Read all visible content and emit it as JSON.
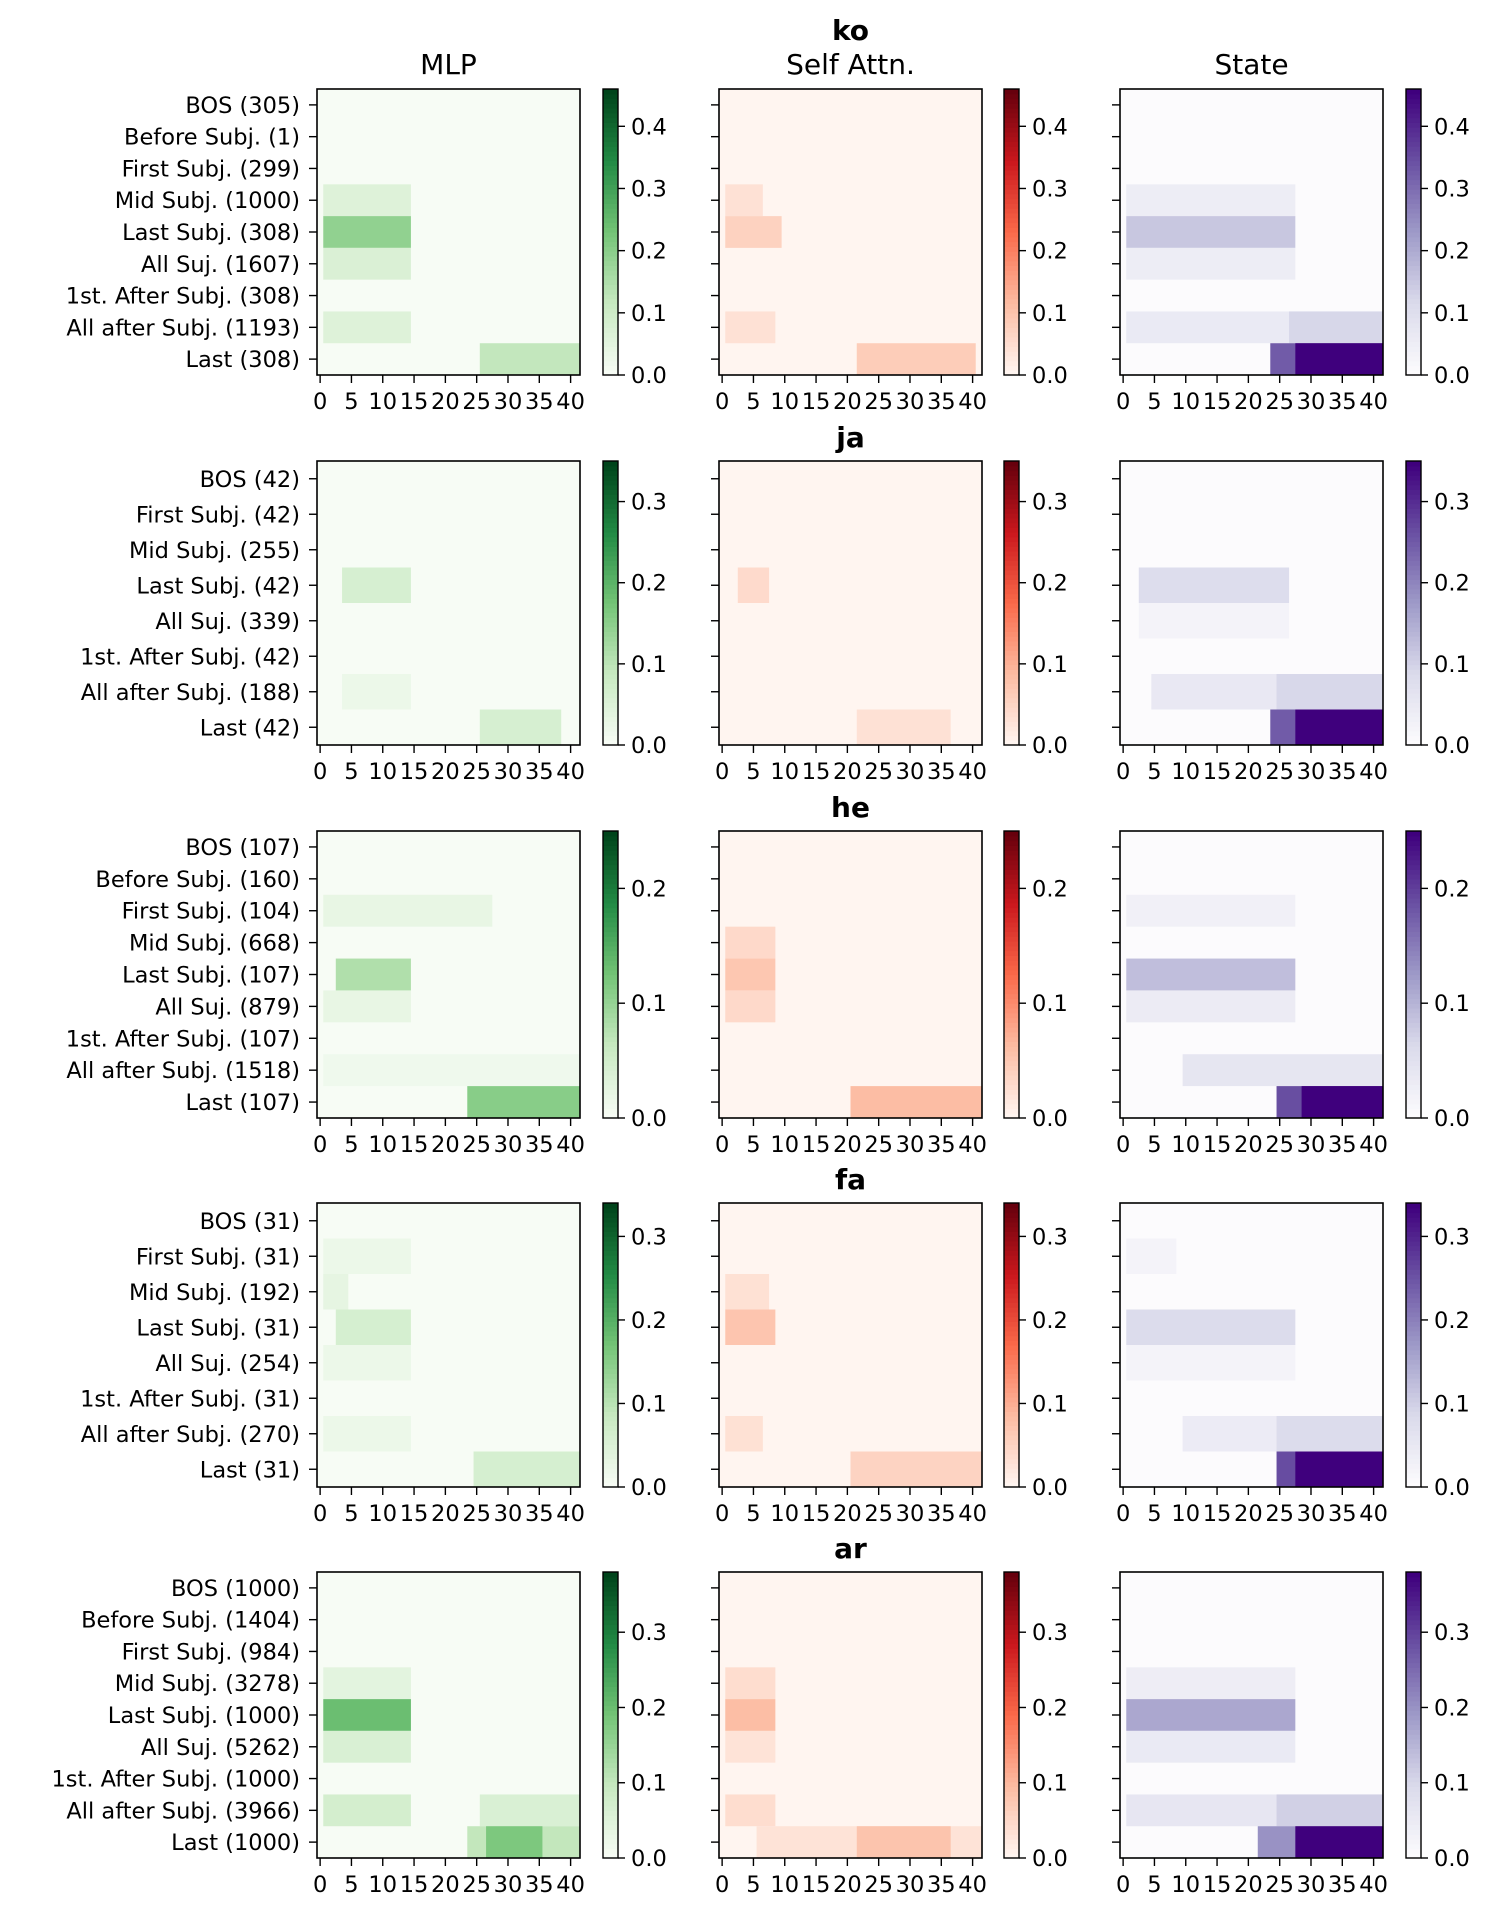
{
  "figure": {
    "column_titles": [
      "MLP",
      "Self Attn.",
      "State"
    ]
  },
  "chart_data": [
    {
      "type": "heatmap",
      "title": "ko",
      "rows": [
        "BOS (305)",
        "Before Subj. (1)",
        "First Subj. (299)",
        "Mid Subj. (1000)",
        "Last Subj. (308)",
        "All Suj. (1607)",
        "1st. After Subj. (308)",
        "All after Subj. (1193)",
        "Last (308)"
      ],
      "x_ticks": [
        "0",
        "5",
        "10",
        "15",
        "20",
        "25",
        "30",
        "35",
        "40"
      ],
      "xlim": [
        0,
        42
      ],
      "vmax": 0.46,
      "colorbar_ticks": [
        "0.0",
        "0.1",
        "0.2",
        "0.3",
        "0.4"
      ],
      "panels": [
        {
          "name": "MLP",
          "cmap": "Greens",
          "blobs": [
            {
              "row": "Mid Subj. (1000)",
              "from": 1,
              "to": 14,
              "value": 0.06
            },
            {
              "row": "Last Subj. (308)",
              "from": 1,
              "to": 14,
              "value": 0.19
            },
            {
              "row": "All Suj. (1607)",
              "from": 1,
              "to": 14,
              "value": 0.07
            },
            {
              "row": "All after Subj. (1193)",
              "from": 1,
              "to": 14,
              "value": 0.06
            },
            {
              "row": "Last (308)",
              "from": 26,
              "to": 41,
              "value": 0.12
            }
          ]
        },
        {
          "name": "Self Attn.",
          "cmap": "Reds",
          "blobs": [
            {
              "row": "Mid Subj. (1000)",
              "from": 1,
              "to": 6,
              "value": 0.04
            },
            {
              "row": "Last Subj. (308)",
              "from": 1,
              "to": 9,
              "value": 0.07
            },
            {
              "row": "All after Subj. (1193)",
              "from": 1,
              "to": 8,
              "value": 0.04
            },
            {
              "row": "Last (308)",
              "from": 22,
              "to": 40,
              "value": 0.08
            }
          ]
        },
        {
          "name": "State",
          "cmap": "Purples",
          "blobs": [
            {
              "row": "Mid Subj. (1000)",
              "from": 1,
              "to": 27,
              "value": 0.05
            },
            {
              "row": "Last Subj. (308)",
              "from": 1,
              "to": 27,
              "value": 0.15
            },
            {
              "row": "All Suj. (1607)",
              "from": 1,
              "to": 27,
              "value": 0.05
            },
            {
              "row": "All after Subj. (1193)",
              "from": 1,
              "to": 41,
              "value": 0.06
            },
            {
              "row": "All after Subj. (1193)",
              "from": 27,
              "to": 41,
              "value": 0.12
            },
            {
              "row": "Last (308)",
              "from": 24,
              "to": 41,
              "value": 0.33
            },
            {
              "row": "Last (308)",
              "from": 28,
              "to": 41,
              "value": 0.46
            }
          ]
        }
      ]
    },
    {
      "type": "heatmap",
      "title": "ja",
      "rows": [
        "BOS (42)",
        "First Subj. (42)",
        "Mid Subj. (255)",
        "Last Subj. (42)",
        "All Suj. (339)",
        "1st. After Subj. (42)",
        "All after Subj. (188)",
        "Last (42)"
      ],
      "x_ticks": [
        "0",
        "5",
        "10",
        "15",
        "20",
        "25",
        "30",
        "35",
        "40"
      ],
      "xlim": [
        0,
        42
      ],
      "vmax": 0.35,
      "colorbar_ticks": [
        "0.0",
        "0.1",
        "0.2",
        "0.3"
      ],
      "panels": [
        {
          "name": "MLP",
          "cmap": "Greens",
          "blobs": [
            {
              "row": "Last Subj. (42)",
              "from": 4,
              "to": 14,
              "value": 0.06
            },
            {
              "row": "All after Subj. (188)",
              "from": 4,
              "to": 14,
              "value": 0.02
            },
            {
              "row": "Last (42)",
              "from": 26,
              "to": 38,
              "value": 0.06
            }
          ]
        },
        {
          "name": "Self Attn.",
          "cmap": "Reds",
          "blobs": [
            {
              "row": "Last Subj. (42)",
              "from": 3,
              "to": 7,
              "value": 0.04
            },
            {
              "row": "Last (42)",
              "from": 22,
              "to": 36,
              "value": 0.03
            }
          ]
        },
        {
          "name": "State",
          "cmap": "Purples",
          "blobs": [
            {
              "row": "Last Subj. (42)",
              "from": 3,
              "to": 26,
              "value": 0.08
            },
            {
              "row": "All Suj. (339)",
              "from": 3,
              "to": 26,
              "value": 0.02
            },
            {
              "row": "All after Subj. (188)",
              "from": 5,
              "to": 41,
              "value": 0.05
            },
            {
              "row": "All after Subj. (188)",
              "from": 25,
              "to": 41,
              "value": 0.09
            },
            {
              "row": "Last (42)",
              "from": 24,
              "to": 41,
              "value": 0.25
            },
            {
              "row": "Last (42)",
              "from": 28,
              "to": 41,
              "value": 0.35
            }
          ]
        }
      ]
    },
    {
      "type": "heatmap",
      "title": "he",
      "rows": [
        "BOS (107)",
        "Before Subj. (160)",
        "First Subj. (104)",
        "Mid Subj. (668)",
        "Last Subj. (107)",
        "All Suj. (879)",
        "1st. After Subj. (107)",
        "All after Subj. (1518)",
        "Last (107)"
      ],
      "x_ticks": [
        "0",
        "5",
        "10",
        "15",
        "20",
        "25",
        "30",
        "35",
        "40"
      ],
      "xlim": [
        0,
        42
      ],
      "vmax": 0.25,
      "colorbar_ticks": [
        "0.0",
        "0.1",
        "0.2"
      ],
      "panels": [
        {
          "name": "MLP",
          "cmap": "Greens",
          "blobs": [
            {
              "row": "First Subj. (104)",
              "from": 1,
              "to": 27,
              "value": 0.02
            },
            {
              "row": "Last Subj. (107)",
              "from": 3,
              "to": 14,
              "value": 0.08
            },
            {
              "row": "All Suj. (879)",
              "from": 1,
              "to": 14,
              "value": 0.02
            },
            {
              "row": "All after Subj. (1518)",
              "from": 1,
              "to": 41,
              "value": 0.01
            },
            {
              "row": "Last (107)",
              "from": 24,
              "to": 41,
              "value": 0.11
            }
          ]
        },
        {
          "name": "Self Attn.",
          "cmap": "Reds",
          "blobs": [
            {
              "row": "Mid Subj. (668)",
              "from": 1,
              "to": 8,
              "value": 0.03
            },
            {
              "row": "Last Subj. (107)",
              "from": 1,
              "to": 8,
              "value": 0.05
            },
            {
              "row": "All Suj. (879)",
              "from": 1,
              "to": 8,
              "value": 0.03
            },
            {
              "row": "Last (107)",
              "from": 21,
              "to": 41,
              "value": 0.06
            }
          ]
        },
        {
          "name": "State",
          "cmap": "Purples",
          "blobs": [
            {
              "row": "First Subj. (104)",
              "from": 1,
              "to": 27,
              "value": 0.02
            },
            {
              "row": "Last Subj. (107)",
              "from": 1,
              "to": 27,
              "value": 0.09
            },
            {
              "row": "All Suj. (879)",
              "from": 1,
              "to": 27,
              "value": 0.03
            },
            {
              "row": "All after Subj. (1518)",
              "from": 10,
              "to": 41,
              "value": 0.04
            },
            {
              "row": "Last (107)",
              "from": 25,
              "to": 41,
              "value": 0.19
            },
            {
              "row": "Last (107)",
              "from": 29,
              "to": 41,
              "value": 0.25
            }
          ]
        }
      ]
    },
    {
      "type": "heatmap",
      "title": "fa",
      "rows": [
        "BOS (31)",
        "First Subj. (31)",
        "Mid Subj. (192)",
        "Last Subj. (31)",
        "All Suj. (254)",
        "1st. After Subj. (31)",
        "All after Subj. (270)",
        "Last (31)"
      ],
      "x_ticks": [
        "0",
        "5",
        "10",
        "15",
        "20",
        "25",
        "30",
        "35",
        "40"
      ],
      "xlim": [
        0,
        42
      ],
      "vmax": 0.34,
      "colorbar_ticks": [
        "0.0",
        "0.1",
        "0.2",
        "0.3"
      ],
      "panels": [
        {
          "name": "MLP",
          "cmap": "Greens",
          "blobs": [
            {
              "row": "First Subj. (31)",
              "from": 1,
              "to": 14,
              "value": 0.02
            },
            {
              "row": "Mid Subj. (192)",
              "from": 1,
              "to": 4,
              "value": 0.03
            },
            {
              "row": "Last Subj. (31)",
              "from": 3,
              "to": 14,
              "value": 0.06
            },
            {
              "row": "All Suj. (254)",
              "from": 1,
              "to": 14,
              "value": 0.02
            },
            {
              "row": "All after Subj. (270)",
              "from": 1,
              "to": 14,
              "value": 0.02
            },
            {
              "row": "Last (31)",
              "from": 25,
              "to": 41,
              "value": 0.06
            }
          ]
        },
        {
          "name": "Self Attn.",
          "cmap": "Reds",
          "blobs": [
            {
              "row": "Mid Subj. (192)",
              "from": 1,
              "to": 7,
              "value": 0.03
            },
            {
              "row": "Last Subj. (31)",
              "from": 1,
              "to": 8,
              "value": 0.07
            },
            {
              "row": "All after Subj. (270)",
              "from": 1,
              "to": 6,
              "value": 0.03
            },
            {
              "row": "Last (31)",
              "from": 21,
              "to": 41,
              "value": 0.05
            }
          ]
        },
        {
          "name": "State",
          "cmap": "Purples",
          "blobs": [
            {
              "row": "First Subj. (31)",
              "from": 1,
              "to": 8,
              "value": 0.02
            },
            {
              "row": "Last Subj. (31)",
              "from": 1,
              "to": 27,
              "value": 0.08
            },
            {
              "row": "All Suj. (254)",
              "from": 1,
              "to": 27,
              "value": 0.02
            },
            {
              "row": "All after Subj. (270)",
              "from": 10,
              "to": 41,
              "value": 0.04
            },
            {
              "row": "All after Subj. (270)",
              "from": 25,
              "to": 41,
              "value": 0.08
            },
            {
              "row": "Last (31)",
              "from": 25,
              "to": 41,
              "value": 0.26
            },
            {
              "row": "Last (31)",
              "from": 28,
              "to": 41,
              "value": 0.34
            }
          ]
        }
      ]
    },
    {
      "type": "heatmap",
      "title": "ar",
      "rows": [
        "BOS (1000)",
        "Before Subj. (1404)",
        "First Subj. (984)",
        "Mid Subj. (3278)",
        "Last Subj. (1000)",
        "All Suj. (5262)",
        "1st. After Subj. (1000)",
        "All after Subj. (3966)",
        "Last (1000)"
      ],
      "x_ticks": [
        "0",
        "5",
        "10",
        "15",
        "20",
        "25",
        "30",
        "35",
        "40"
      ],
      "xlim": [
        0,
        42
      ],
      "vmax": 0.38,
      "colorbar_ticks": [
        "0.0",
        "0.1",
        "0.2",
        "0.3"
      ],
      "panels": [
        {
          "name": "MLP",
          "cmap": "Greens",
          "blobs": [
            {
              "row": "Mid Subj. (3278)",
              "from": 1,
              "to": 14,
              "value": 0.04
            },
            {
              "row": "Last Subj. (1000)",
              "from": 1,
              "to": 14,
              "value": 0.2
            },
            {
              "row": "All Suj. (5262)",
              "from": 1,
              "to": 14,
              "value": 0.06
            },
            {
              "row": "All after Subj. (3966)",
              "from": 1,
              "to": 14,
              "value": 0.07
            },
            {
              "row": "All after Subj. (3966)",
              "from": 26,
              "to": 41,
              "value": 0.06
            },
            {
              "row": "Last (1000)",
              "from": 24,
              "to": 41,
              "value": 0.1
            },
            {
              "row": "Last (1000)",
              "from": 27,
              "to": 35,
              "value": 0.18
            }
          ]
        },
        {
          "name": "Self Attn.",
          "cmap": "Reds",
          "blobs": [
            {
              "row": "Mid Subj. (3278)",
              "from": 1,
              "to": 8,
              "value": 0.04
            },
            {
              "row": "Last Subj. (1000)",
              "from": 1,
              "to": 8,
              "value": 0.09
            },
            {
              "row": "All Suj. (5262)",
              "from": 1,
              "to": 8,
              "value": 0.03
            },
            {
              "row": "All after Subj. (3966)",
              "from": 1,
              "to": 8,
              "value": 0.04
            },
            {
              "row": "Last (1000)",
              "from": 6,
              "to": 41,
              "value": 0.03
            },
            {
              "row": "Last (1000)",
              "from": 22,
              "to": 36,
              "value": 0.08
            }
          ]
        },
        {
          "name": "State",
          "cmap": "Purples",
          "blobs": [
            {
              "row": "Mid Subj. (3278)",
              "from": 1,
              "to": 27,
              "value": 0.04
            },
            {
              "row": "Last Subj. (1000)",
              "from": 1,
              "to": 27,
              "value": 0.17
            },
            {
              "row": "All Suj. (5262)",
              "from": 1,
              "to": 27,
              "value": 0.05
            },
            {
              "row": "All after Subj. (3966)",
              "from": 1,
              "to": 41,
              "value": 0.06
            },
            {
              "row": "All after Subj. (3966)",
              "from": 25,
              "to": 41,
              "value": 0.11
            },
            {
              "row": "Last (1000)",
              "from": 22,
              "to": 41,
              "value": 0.2
            },
            {
              "row": "Last (1000)",
              "from": 28,
              "to": 41,
              "value": 0.38
            }
          ]
        }
      ]
    }
  ]
}
